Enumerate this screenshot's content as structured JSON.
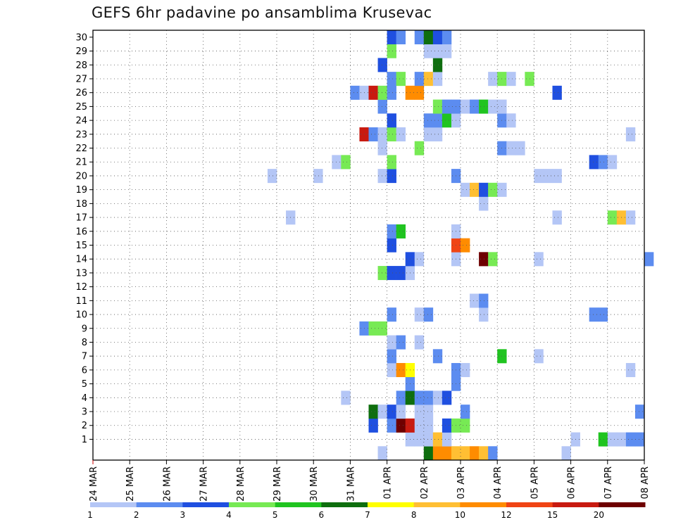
{
  "chart_data": {
    "type": "heatmap",
    "title": "GEFS 6hr padavine po ansamblima Krusevac",
    "xlabel": "",
    "ylabel": "",
    "x_ticks": [
      "24 MAR",
      "25 MAR",
      "26 MAR",
      "27 MAR",
      "28 MAR",
      "29 MAR",
      "30 MAR",
      "31 MAR",
      "01 APR",
      "02 APR",
      "03 APR",
      "04 APR",
      "05 APR",
      "06 APR",
      "07 APR",
      "08 APR"
    ],
    "x_range": [
      "2024-03-24T00",
      "2024-04-08T00"
    ],
    "y_ticks": [
      1,
      2,
      3,
      4,
      5,
      6,
      7,
      8,
      9,
      10,
      11,
      12,
      13,
      14,
      15,
      16,
      17,
      18,
      19,
      20,
      21,
      22,
      23,
      24,
      25,
      26,
      27,
      28,
      29,
      30
    ],
    "y_range": [
      0,
      30
    ],
    "grid": true,
    "colorbar": {
      "labels": [
        "1",
        "2",
        "3",
        "4",
        "5",
        "6",
        "7",
        "8",
        "10",
        "12",
        "15",
        "20"
      ],
      "colors": [
        "#b4c6f6",
        "#5c8cf0",
        "#1f4fe0",
        "#77ea54",
        "#20c420",
        "#0e6e0e",
        "#ffff00",
        "#ffbf33",
        "#ff8c00",
        "#f04414",
        "#c81a10",
        "#6e0000"
      ],
      "placement": "bottom"
    },
    "rows": [
      {
        "member": 0,
        "cells": [
          [
            "2024-03-31T18",
            1
          ],
          [
            "2024-04-02T00",
            6
          ],
          [
            "2024-04-02T06",
            10
          ],
          [
            "2024-04-02T12",
            10
          ],
          [
            "2024-04-02T18",
            8
          ],
          [
            "2024-04-03T00",
            8
          ],
          [
            "2024-04-03T06",
            10
          ],
          [
            "2024-04-03T12",
            8
          ],
          [
            "2024-04-03T18",
            2
          ],
          [
            "2024-04-05T18",
            1
          ]
        ]
      },
      {
        "member": 1,
        "cells": [
          [
            "2024-04-01T12",
            1
          ],
          [
            "2024-04-01T18",
            1
          ],
          [
            "2024-04-02T00",
            1
          ],
          [
            "2024-04-02T06",
            8
          ],
          [
            "2024-04-02T12",
            1
          ],
          [
            "2024-04-06T00",
            1
          ],
          [
            "2024-04-06T18",
            5
          ],
          [
            "2024-04-07T00",
            1
          ],
          [
            "2024-04-07T06",
            1
          ],
          [
            "2024-04-07T12",
            2
          ],
          [
            "2024-04-07T18",
            2
          ]
        ]
      },
      {
        "member": 2,
        "cells": [
          [
            "2024-03-31T12",
            3
          ],
          [
            "2024-04-01T00",
            2
          ],
          [
            "2024-04-01T06",
            20
          ],
          [
            "2024-04-01T12",
            15
          ],
          [
            "2024-04-01T18",
            1
          ],
          [
            "2024-04-02T00",
            1
          ],
          [
            "2024-04-02T12",
            3
          ],
          [
            "2024-04-02T18",
            4
          ],
          [
            "2024-04-03T00",
            4
          ]
        ]
      },
      {
        "member": 3,
        "cells": [
          [
            "2024-03-31T12",
            6
          ],
          [
            "2024-03-31T18",
            1
          ],
          [
            "2024-04-01T00",
            3
          ],
          [
            "2024-04-01T06",
            1
          ],
          [
            "2024-04-01T18",
            1
          ],
          [
            "2024-04-02T00",
            1
          ],
          [
            "2024-04-03T00",
            2
          ],
          [
            "2024-04-07T18",
            2
          ]
        ]
      },
      {
        "member": 4,
        "cells": [
          [
            "2024-03-30T18",
            1
          ],
          [
            "2024-04-01T06",
            2
          ],
          [
            "2024-04-01T12",
            6
          ],
          [
            "2024-04-01T18",
            2
          ],
          [
            "2024-04-02T00",
            2
          ],
          [
            "2024-04-02T06",
            1
          ],
          [
            "2024-04-02T12",
            3
          ]
        ]
      },
      {
        "member": 5,
        "cells": [
          [
            "2024-04-01T12",
            2
          ],
          [
            "2024-04-02T18",
            2
          ]
        ]
      },
      {
        "member": 6,
        "cells": [
          [
            "2024-04-01T00",
            1
          ],
          [
            "2024-04-01T06",
            10
          ],
          [
            "2024-04-01T12",
            7
          ],
          [
            "2024-04-02T18",
            2
          ],
          [
            "2024-04-03T00",
            1
          ],
          [
            "2024-04-07T12",
            1
          ]
        ]
      },
      {
        "member": 7,
        "cells": [
          [
            "2024-04-01T00",
            2
          ],
          [
            "2024-04-02T06",
            2
          ],
          [
            "2024-04-04T00",
            5
          ],
          [
            "2024-04-05T00",
            1
          ]
        ]
      },
      {
        "member": 8,
        "cells": [
          [
            "2024-04-01T00",
            1
          ],
          [
            "2024-04-01T06",
            2
          ],
          [
            "2024-04-01T18",
            1
          ]
        ]
      },
      {
        "member": 9,
        "cells": [
          [
            "2024-03-31T06",
            2
          ],
          [
            "2024-03-31T12",
            4
          ],
          [
            "2024-03-31T18",
            4
          ]
        ]
      },
      {
        "member": 10,
        "cells": [
          [
            "2024-04-01T00",
            2
          ],
          [
            "2024-04-01T18",
            1
          ],
          [
            "2024-04-02T00",
            2
          ],
          [
            "2024-04-03T12",
            1
          ],
          [
            "2024-04-06T12",
            2
          ],
          [
            "2024-04-06T18",
            2
          ]
        ]
      },
      {
        "member": 11,
        "cells": [
          [
            "2024-04-03T06",
            1
          ],
          [
            "2024-04-03T12",
            2
          ]
        ]
      },
      {
        "member": 12,
        "cells": []
      },
      {
        "member": 13,
        "cells": [
          [
            "2024-03-31T18",
            4
          ],
          [
            "2024-04-01T00",
            3
          ],
          [
            "2024-04-01T06",
            3
          ],
          [
            "2024-04-01T12",
            1
          ]
        ]
      },
      {
        "member": 14,
        "cells": [
          [
            "2024-04-01T12",
            3
          ],
          [
            "2024-04-01T18",
            1
          ],
          [
            "2024-04-02T18",
            1
          ],
          [
            "2024-04-03T12",
            20
          ],
          [
            "2024-04-03T18",
            4
          ],
          [
            "2024-04-05T00",
            1
          ],
          [
            "2024-04-08T00",
            2
          ]
        ]
      },
      {
        "member": 15,
        "cells": [
          [
            "2024-04-01T00",
            3
          ],
          [
            "2024-04-02T18",
            12
          ],
          [
            "2024-04-03T00",
            10
          ]
        ]
      },
      {
        "member": 16,
        "cells": [
          [
            "2024-04-01T00",
            2
          ],
          [
            "2024-04-01T06",
            5
          ],
          [
            "2024-04-02T18",
            1
          ]
        ]
      },
      {
        "member": 17,
        "cells": [
          [
            "2024-03-29T06",
            1
          ],
          [
            "2024-04-05T12",
            1
          ],
          [
            "2024-04-07T00",
            4
          ],
          [
            "2024-04-07T06",
            8
          ],
          [
            "2024-04-07T12",
            1
          ]
        ]
      },
      {
        "member": 18,
        "cells": [
          [
            "2024-04-03T12",
            1
          ]
        ]
      },
      {
        "member": 19,
        "cells": [
          [
            "2024-04-03T00",
            1
          ],
          [
            "2024-04-03T06",
            8
          ],
          [
            "2024-04-03T12",
            3
          ],
          [
            "2024-04-03T18",
            4
          ],
          [
            "2024-04-04T00",
            1
          ]
        ]
      },
      {
        "member": 20,
        "cells": [
          [
            "2024-03-28T18",
            1
          ],
          [
            "2024-03-30T00",
            1
          ],
          [
            "2024-03-31T18",
            1
          ],
          [
            "2024-04-01T00",
            3
          ],
          [
            "2024-04-02T18",
            2
          ],
          [
            "2024-04-05T00",
            1
          ],
          [
            "2024-04-05T06",
            1
          ],
          [
            "2024-04-05T12",
            1
          ]
        ]
      },
      {
        "member": 21,
        "cells": [
          [
            "2024-03-30T12",
            1
          ],
          [
            "2024-03-30T18",
            4
          ],
          [
            "2024-04-01T00",
            4
          ],
          [
            "2024-04-06T12",
            3
          ],
          [
            "2024-04-06T18",
            2
          ],
          [
            "2024-04-07T00",
            1
          ]
        ]
      },
      {
        "member": 22,
        "cells": [
          [
            "2024-03-31T18",
            1
          ],
          [
            "2024-04-01T18",
            4
          ],
          [
            "2024-04-04T00",
            2
          ],
          [
            "2024-04-04T06",
            1
          ],
          [
            "2024-04-04T12",
            1
          ]
        ]
      },
      {
        "member": 23,
        "cells": [
          [
            "2024-03-31T06",
            15
          ],
          [
            "2024-03-31T12",
            2
          ],
          [
            "2024-03-31T18",
            1
          ],
          [
            "2024-04-01T00",
            4
          ],
          [
            "2024-04-01T06",
            1
          ],
          [
            "2024-04-02T00",
            1
          ],
          [
            "2024-04-02T06",
            1
          ],
          [
            "2024-04-07T12",
            1
          ]
        ]
      },
      {
        "member": 24,
        "cells": [
          [
            "2024-04-01T00",
            3
          ],
          [
            "2024-04-02T00",
            2
          ],
          [
            "2024-04-02T06",
            2
          ],
          [
            "2024-04-02T12",
            5
          ],
          [
            "2024-04-02T18",
            1
          ],
          [
            "2024-04-04T00",
            2
          ],
          [
            "2024-04-04T06",
            1
          ]
        ]
      },
      {
        "member": 25,
        "cells": [
          [
            "2024-03-31T18",
            2
          ],
          [
            "2024-04-02T06",
            4
          ],
          [
            "2024-04-02T12",
            2
          ],
          [
            "2024-04-02T18",
            2
          ],
          [
            "2024-04-03T00",
            1
          ],
          [
            "2024-04-03T06",
            2
          ],
          [
            "2024-04-03T12",
            5
          ],
          [
            "2024-04-03T18",
            1
          ],
          [
            "2024-04-04T00",
            1
          ]
        ]
      },
      {
        "member": 26,
        "cells": [
          [
            "2024-03-31T00",
            2
          ],
          [
            "2024-03-31T06",
            1
          ],
          [
            "2024-03-31T12",
            15
          ],
          [
            "2024-03-31T18",
            4
          ],
          [
            "2024-04-01T00",
            2
          ],
          [
            "2024-04-01T12",
            10
          ],
          [
            "2024-04-01T18",
            10
          ],
          [
            "2024-04-05T12",
            3
          ]
        ]
      },
      {
        "member": 27,
        "cells": [
          [
            "2024-04-01T00",
            2
          ],
          [
            "2024-04-01T06",
            4
          ],
          [
            "2024-04-01T18",
            2
          ],
          [
            "2024-04-02T00",
            8
          ],
          [
            "2024-04-02T06",
            1
          ],
          [
            "2024-04-03T18",
            1
          ],
          [
            "2024-04-04T00",
            4
          ],
          [
            "2024-04-04T06",
            1
          ],
          [
            "2024-04-04T18",
            4
          ]
        ]
      },
      {
        "member": 28,
        "cells": [
          [
            "2024-03-31T18",
            3
          ],
          [
            "2024-04-02T06",
            6
          ]
        ]
      },
      {
        "member": 29,
        "cells": [
          [
            "2024-04-01T00",
            4
          ],
          [
            "2024-04-02T00",
            1
          ],
          [
            "2024-04-02T06",
            1
          ],
          [
            "2024-04-02T12",
            1
          ]
        ]
      },
      {
        "member": 30,
        "cells": [
          [
            "2024-04-01T00",
            3
          ],
          [
            "2024-04-01T06",
            2
          ],
          [
            "2024-04-01T18",
            2
          ],
          [
            "2024-04-02T00",
            6
          ],
          [
            "2024-04-02T06",
            3
          ],
          [
            "2024-04-02T12",
            2
          ]
        ]
      }
    ]
  }
}
